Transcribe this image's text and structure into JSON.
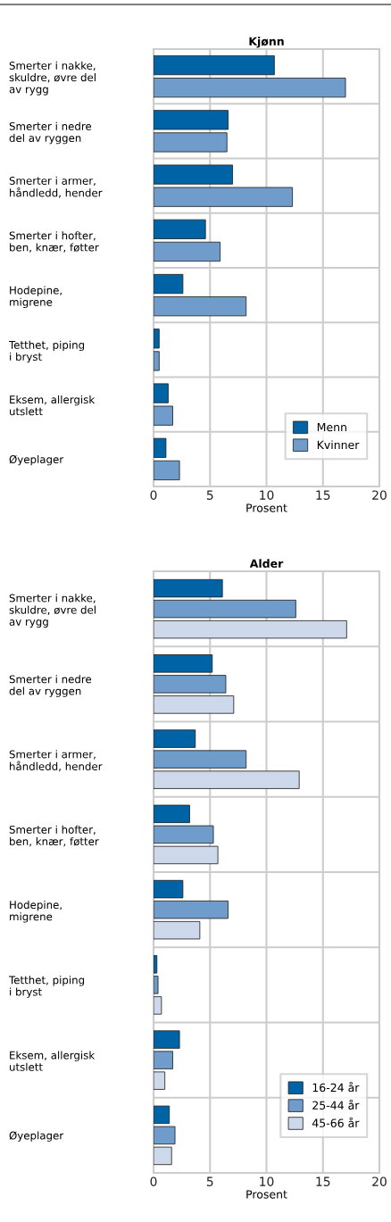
{
  "chart_data": [
    {
      "type": "bar",
      "orientation": "horizontal",
      "title": "Kjønn",
      "xlabel": "Prosent",
      "categories": [
        "Smerter i nakke,\nskuldre, øvre del\nav rygg",
        "Smerter i nedre\ndel av ryggen",
        "Smerter i armer,\nhåndledd, hender",
        "Smerter i hofter,\nben, knær, føtter",
        "Hodepine,\nmigrene",
        "Tetthet, piping\ni bryst",
        "Eksem, allergisk\nutslett",
        "Øyeplager"
      ],
      "series": [
        {
          "name": "Menn",
          "color": "#0063a6",
          "values": [
            10.7,
            6.6,
            7.0,
            4.6,
            2.6,
            0.5,
            1.3,
            1.1
          ]
        },
        {
          "name": "Kvinner",
          "color": "#6f9ccb",
          "values": [
            17.0,
            6.5,
            12.3,
            5.9,
            8.2,
            0.5,
            1.7,
            2.3
          ]
        }
      ],
      "xlim": [
        0,
        20
      ],
      "xticks": [
        0,
        5,
        10,
        15,
        20
      ],
      "grid": true,
      "legend": "bottom right"
    },
    {
      "type": "bar",
      "orientation": "horizontal",
      "title": "Alder",
      "xlabel": "Prosent",
      "categories": [
        "Smerter i nakke,\nskuldre, øvre del\nav rygg",
        "Smerter i nedre\ndel av ryggen",
        "Smerter i armer,\nhåndledd, hender",
        "Smerter i hofter,\nben, knær, føtter",
        "Hodepine,\nmigrene",
        "Tetthet, piping\ni bryst",
        "Eksem, allergisk\nutslett",
        "Øyeplager"
      ],
      "series": [
        {
          "name": "16-24 år",
          "color": "#0063a6",
          "values": [
            6.1,
            5.2,
            3.7,
            3.2,
            2.6,
            0.3,
            2.3,
            1.4
          ]
        },
        {
          "name": "25-44 år",
          "color": "#6f9ccb",
          "values": [
            12.6,
            6.4,
            8.2,
            5.3,
            6.6,
            0.4,
            1.7,
            1.9
          ]
        },
        {
          "name": "45-66 år",
          "color": "#cdd9ea",
          "values": [
            17.1,
            7.1,
            12.9,
            5.7,
            4.1,
            0.7,
            1.0,
            1.6
          ]
        }
      ],
      "xlim": [
        0,
        20
      ],
      "xticks": [
        0,
        5,
        10,
        15,
        20
      ],
      "grid": true,
      "legend": "bottom right"
    }
  ]
}
